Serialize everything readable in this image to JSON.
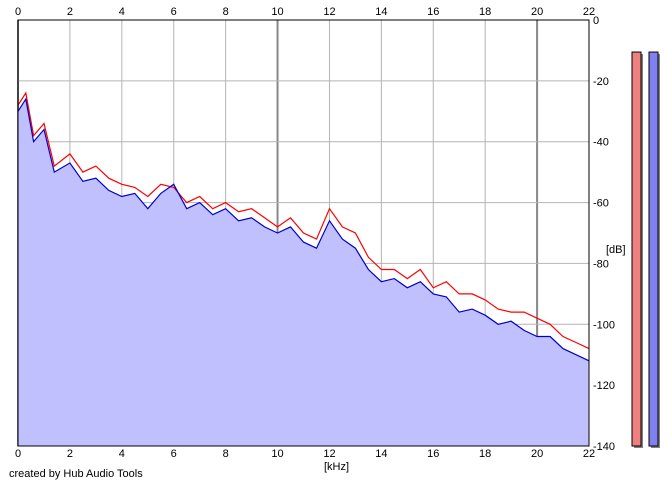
{
  "chart_data": {
    "type": "area",
    "xlabel": "[kHz]",
    "ylabel": "[dB]",
    "xlim": [
      0,
      22
    ],
    "ylim": [
      -140,
      0
    ],
    "x_ticks": [
      "0",
      "2",
      "4",
      "6",
      "8",
      "10",
      "12",
      "14",
      "16",
      "18",
      "20",
      "22"
    ],
    "y_ticks": [
      "0",
      "-20",
      "-40",
      "-60",
      "-80",
      "-100",
      "-120",
      "-140"
    ],
    "grid": true,
    "legend": "none",
    "series": [
      {
        "color": "#ff0000",
        "x": [
          0,
          0.3,
          0.6,
          1,
          1.4,
          2,
          2.5,
          3,
          3.5,
          4,
          4.5,
          5,
          5.5,
          6,
          6.5,
          7,
          7.5,
          8,
          8.5,
          9,
          9.5,
          10,
          10.5,
          11,
          11.5,
          12,
          12.5,
          13,
          13.5,
          14,
          14.5,
          15,
          15.5,
          16,
          16.5,
          17,
          17.5,
          18,
          18.5,
          19,
          19.5,
          20,
          20.5,
          21,
          21.5,
          22
        ],
        "values": [
          -28,
          -24,
          -38,
          -34,
          -48,
          -44,
          -50,
          -48,
          -52,
          -54,
          -55,
          -58,
          -54,
          -55,
          -60,
          -58,
          -62,
          -60,
          -63,
          -62,
          -65,
          -68,
          -65,
          -70,
          -72,
          -62,
          -68,
          -70,
          -78,
          -82,
          -82,
          -85,
          -82,
          -88,
          -86,
          -90,
          -90,
          -92,
          -95,
          -96,
          -96,
          -98,
          -100,
          -104,
          -106,
          -108
        ]
      },
      {
        "color": "#0000cc",
        "fill": "#c0c0ff",
        "x": [
          0,
          0.3,
          0.6,
          1,
          1.4,
          2,
          2.5,
          3,
          3.5,
          4,
          4.5,
          5,
          5.5,
          6,
          6.5,
          7,
          7.5,
          8,
          8.5,
          9,
          9.5,
          10,
          10.5,
          11,
          11.5,
          12,
          12.5,
          13,
          13.5,
          14,
          14.5,
          15,
          15.5,
          16,
          16.5,
          17,
          17.5,
          18,
          18.5,
          19,
          19.5,
          20,
          20.5,
          21,
          21.5,
          22
        ],
        "values": [
          -30,
          -26,
          -40,
          -36,
          -50,
          -47,
          -53,
          -52,
          -56,
          -58,
          -57,
          -62,
          -57,
          -54,
          -62,
          -60,
          -64,
          -62,
          -66,
          -65,
          -68,
          -70,
          -68,
          -73,
          -75,
          -66,
          -72,
          -75,
          -82,
          -86,
          -85,
          -88,
          -86,
          -90,
          -91,
          -96,
          -95,
          -97,
          -100,
          -99,
          -102,
          -104,
          -104,
          -108,
          -110,
          -112
        ]
      }
    ],
    "level_meters": {
      "left": {
        "level": 0.98,
        "color": "#f08080"
      },
      "right": {
        "level": 0.98,
        "color": "#8080f0"
      }
    }
  },
  "credit_text": "created by Hub Audio Tools"
}
